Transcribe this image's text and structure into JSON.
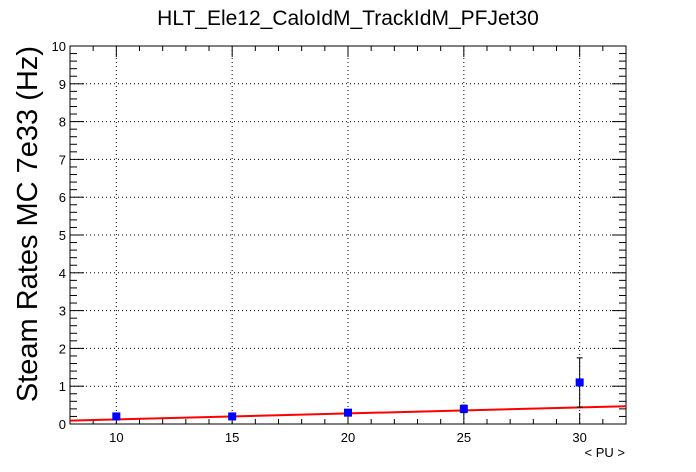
{
  "chart_data": {
    "type": "scatter",
    "title": "HLT_Ele12_CaloIdM_TrackIdM_PFJet30",
    "xlabel": "< PU >",
    "ylabel": "Steam Rates MC 7e33 (Hz)",
    "xlim": [
      8,
      32
    ],
    "ylim": [
      0,
      10
    ],
    "x_ticks": [
      10,
      15,
      20,
      25,
      30
    ],
    "y_ticks": [
      0,
      1,
      2,
      3,
      4,
      5,
      6,
      7,
      8,
      9,
      10
    ],
    "grid": true,
    "series": [
      {
        "type": "scatter",
        "marker": "square",
        "color": "#0000ff",
        "x": [
          10,
          15,
          20,
          25,
          30
        ],
        "y": [
          0.2,
          0.2,
          0.3,
          0.4,
          1.1
        ],
        "y_err": [
          0.05,
          0.05,
          0.05,
          0.1,
          0.65
        ]
      },
      {
        "type": "line",
        "color": "#ff0000",
        "x": [
          8,
          32
        ],
        "y": [
          0.09,
          0.47
        ]
      }
    ]
  }
}
